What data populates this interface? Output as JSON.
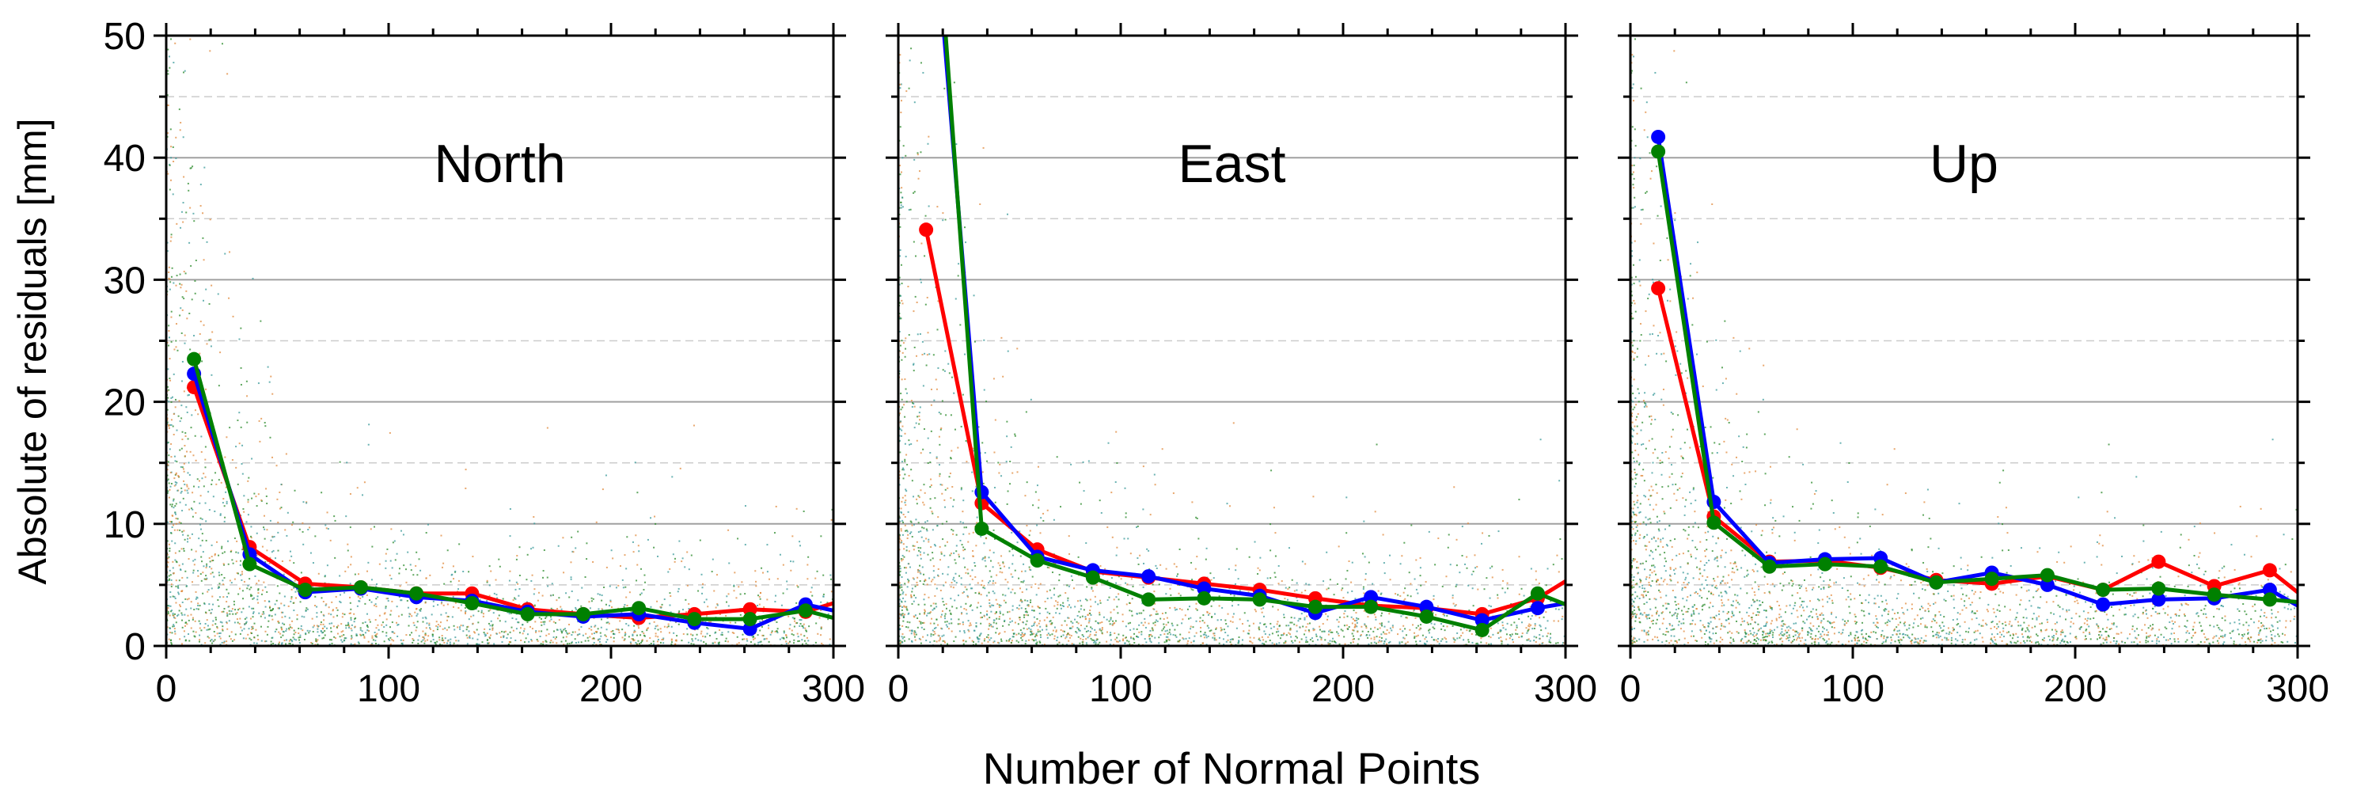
{
  "figure": {
    "ylabel": "Absolute of residuals [mm]",
    "xlabel": "Number of Normal Points"
  },
  "colors": {
    "red": "#ff0000",
    "blue": "#0000ff",
    "green": "#008000",
    "scatter_orange": "#e08a3c",
    "scatter_teal": "#3a9a9a",
    "scatter_green": "#2a8a2a",
    "major_grid": "#a0a0a0",
    "minor_grid": "#cccccc"
  },
  "chart_data": [
    {
      "type": "line",
      "title": "North",
      "xlim": [
        0,
        300
      ],
      "ylim": [
        0,
        50
      ],
      "xticks": [
        0,
        100,
        200,
        300
      ],
      "yticks": [
        0,
        10,
        20,
        30,
        40,
        50
      ],
      "grid": "horizontal major solid, minor dashed",
      "x": [
        12.5,
        37.5,
        62.5,
        87.5,
        112.5,
        137.5,
        162.5,
        187.5,
        212.5,
        237.5,
        262.5,
        287.5,
        300
      ],
      "series": [
        {
          "color": "red",
          "values": [
            21.2,
            8.1,
            5.1,
            4.8,
            4.3,
            4.3,
            3.0,
            2.6,
            2.3,
            2.6,
            3.0,
            2.8,
            3.5
          ]
        },
        {
          "color": "blue",
          "values": [
            22.3,
            7.5,
            4.4,
            4.7,
            4.0,
            3.7,
            2.8,
            2.4,
            2.6,
            1.9,
            1.4,
            3.4,
            2.9
          ]
        },
        {
          "color": "green",
          "values": [
            23.5,
            6.7,
            4.6,
            4.8,
            4.3,
            3.5,
            2.6,
            2.6,
            3.1,
            2.2,
            2.2,
            2.9,
            2.3
          ]
        }
      ]
    },
    {
      "type": "line",
      "title": "East",
      "xlim": [
        0,
        300
      ],
      "ylim": [
        0,
        50
      ],
      "xticks": [
        0,
        100,
        200,
        300
      ],
      "yticks": [
        0,
        10,
        20,
        30,
        40,
        50
      ],
      "grid": "horizontal major solid, minor dashed",
      "x": [
        12.5,
        37.5,
        62.5,
        87.5,
        112.5,
        137.5,
        162.5,
        187.5,
        212.5,
        237.5,
        262.5,
        287.5,
        300
      ],
      "series": [
        {
          "color": "red",
          "values": [
            34.1,
            11.7,
            7.9,
            6.1,
            5.6,
            5.1,
            4.6,
            3.9,
            3.3,
            3.1,
            2.6,
            3.9,
            5.3
          ]
        },
        {
          "color": "blue",
          "values": [
            68.0,
            12.6,
            7.3,
            6.2,
            5.7,
            4.7,
            4.1,
            2.7,
            4.0,
            3.2,
            2.1,
            3.1,
            3.5
          ]
        },
        {
          "color": "green",
          "values": [
            72.0,
            9.6,
            7.0,
            5.6,
            3.8,
            3.9,
            3.8,
            3.2,
            3.2,
            2.4,
            1.3,
            4.3,
            3.4
          ]
        }
      ]
    },
    {
      "type": "line",
      "title": "Up",
      "xlim": [
        0,
        300
      ],
      "ylim": [
        0,
        50
      ],
      "xticks": [
        0,
        100,
        200,
        300
      ],
      "yticks": [
        0,
        10,
        20,
        30,
        40,
        50
      ],
      "grid": "horizontal major solid, minor dashed",
      "x": [
        12.5,
        37.5,
        62.5,
        87.5,
        112.5,
        137.5,
        162.5,
        187.5,
        212.5,
        237.5,
        262.5,
        287.5,
        300
      ],
      "series": [
        {
          "color": "red",
          "values": [
            29.3,
            10.6,
            6.9,
            7.0,
            6.4,
            5.4,
            5.1,
            5.7,
            4.6,
            6.9,
            4.9,
            6.2,
            4.4
          ]
        },
        {
          "color": "blue",
          "values": [
            41.7,
            11.8,
            6.8,
            7.1,
            7.2,
            5.2,
            6.0,
            5.0,
            3.4,
            3.8,
            3.9,
            4.6,
            3.3
          ]
        },
        {
          "color": "green",
          "values": [
            40.5,
            10.1,
            6.5,
            6.7,
            6.5,
            5.2,
            5.5,
            5.8,
            4.6,
            4.7,
            4.2,
            3.8,
            3.6
          ]
        }
      ]
    }
  ]
}
